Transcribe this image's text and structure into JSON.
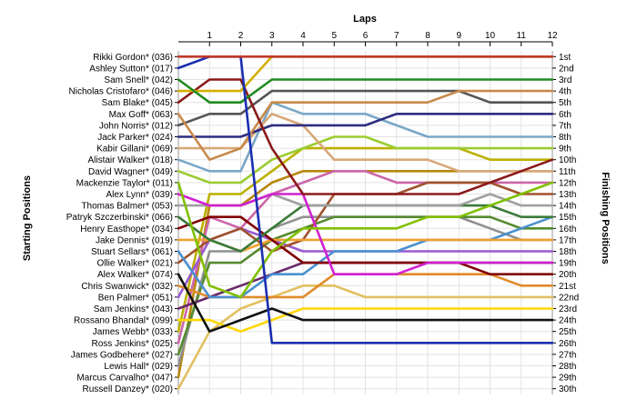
{
  "chart_data": {
    "type": "line",
    "title": "",
    "xlabel": "Laps",
    "ylabel_left": "Starting Positions",
    "ylabel_right": "Finishing Positions",
    "x": [
      0,
      1,
      2,
      3,
      4,
      5,
      6,
      7,
      8,
      9,
      10,
      11,
      12
    ],
    "x_tick_labels": [
      "1",
      "2",
      "3",
      "4",
      "5",
      "6",
      "7",
      "8",
      "9",
      "10",
      "11",
      "12"
    ],
    "grid": true,
    "drivers": [
      "Rikki Gordon* (036)",
      "Ashley Sutton* (017)",
      "Sam Snell* (042)",
      "Nicholas Cristofaro* (046)",
      "Sam Blake* (045)",
      "Max Goff* (063)",
      "John Norris* (012)",
      "Jack Parker* (024)",
      "Kabir Gillani* (069)",
      "Alistair Walker* (018)",
      "David Wagner* (049)",
      "Mackenzie Taylor* (011)",
      "Alex Lynn* (039)",
      "Thomas Balmer* (053)",
      "Patryk Szczerbinski* (066)",
      "Henry Easthope* (034)",
      "Jake Dennis* (019)",
      "Stuart Sellars* (061)",
      "Ollie Walker* (021)",
      "Alex Walker* (074)",
      "Chris Swanwick* (032)",
      "Ben Palmer* (051)",
      "Sam Jenkins* (043)",
      "Rossano Bhandal* (099)",
      "James Webb* (033)",
      "Ross Jenkins* (025)",
      "James Godbehere* (027)",
      "Lewis Hall* (029)",
      "Marcus Carvalho* (047)",
      "Russell Danzey* (020)"
    ],
    "finishing_positions": [
      "1st",
      "2nd",
      "3rd",
      "4th",
      "5th",
      "6th",
      "7th",
      "8th",
      "9th",
      "10th",
      "11th",
      "12th",
      "13th",
      "14th",
      "15th",
      "16th",
      "17th",
      "18th",
      "19th",
      "20th",
      "21st",
      "22nd",
      "23rd",
      "24th",
      "25th",
      "26th",
      "27th",
      "28th",
      "29th",
      "30th"
    ],
    "series": [
      {
        "color": "#c0392b",
        "values": [
          1,
          1,
          1,
          1,
          1,
          1,
          1,
          1,
          1,
          1,
          1,
          1,
          1
        ]
      },
      {
        "color": "#1a2fb0",
        "values": [
          2,
          1,
          1,
          26,
          26,
          26,
          26,
          26,
          26,
          26,
          26,
          26,
          26
        ]
      },
      {
        "color": "#228b22",
        "values": [
          3,
          5,
          5,
          3,
          3,
          3,
          3,
          3,
          3,
          3,
          3,
          3,
          3
        ]
      },
      {
        "color": "#d4b000",
        "values": [
          4,
          4,
          4,
          1,
          1,
          1,
          1,
          1,
          1,
          1,
          1,
          1,
          1
        ]
      },
      {
        "color": "#8b1a1a",
        "values": [
          5,
          3,
          3,
          9,
          13,
          13,
          13,
          13,
          13,
          13,
          12,
          11,
          10
        ]
      },
      {
        "color": "#c78a4a",
        "values": [
          6,
          10,
          9,
          5,
          5,
          5,
          5,
          5,
          5,
          4,
          4,
          4,
          4
        ]
      },
      {
        "color": "#555555",
        "values": [
          7,
          6,
          6,
          4,
          4,
          4,
          4,
          4,
          4,
          4,
          5,
          5,
          5
        ]
      },
      {
        "color": "#2d2d80",
        "values": [
          8,
          8,
          8,
          7,
          7,
          7,
          7,
          6,
          6,
          6,
          6,
          6,
          6
        ]
      },
      {
        "color": "#d8a878",
        "values": [
          9,
          9,
          9,
          6,
          7,
          10,
          10,
          10,
          10,
          11,
          11,
          11,
          11
        ]
      },
      {
        "color": "#7aa7c7",
        "values": [
          10,
          11,
          11,
          5,
          6,
          6,
          6,
          7,
          8,
          8,
          8,
          8,
          8
        ]
      },
      {
        "color": "#9acd32",
        "values": [
          11,
          12,
          12,
          10,
          9,
          8,
          8,
          9,
          9,
          9,
          9,
          9,
          9
        ]
      },
      {
        "color": "#80c000",
        "values": [
          12,
          21,
          22,
          18,
          16,
          16,
          16,
          16,
          15,
          15,
          14,
          13,
          12
        ]
      },
      {
        "color": "#d020d0",
        "values": [
          13,
          14,
          14,
          13,
          13,
          20,
          20,
          20,
          19,
          19,
          19,
          19,
          19
        ]
      },
      {
        "color": "#a0a0a0",
        "values": [
          14,
          14,
          14,
          13,
          14,
          14,
          14,
          14,
          14,
          14,
          13,
          14,
          14
        ]
      },
      {
        "color": "#3a7a3a",
        "values": [
          15,
          17,
          18,
          16,
          14,
          14,
          14,
          14,
          14,
          14,
          14,
          15,
          15
        ]
      },
      {
        "color": "#800000",
        "values": [
          16,
          15,
          15,
          17,
          19,
          19,
          19,
          19,
          19,
          19,
          20,
          20,
          20
        ]
      },
      {
        "color": "#f0a030",
        "values": [
          17,
          17,
          18,
          17,
          17,
          17,
          17,
          17,
          17,
          17,
          17,
          17,
          17
        ]
      },
      {
        "color": "#4a90d0",
        "values": [
          18,
          22,
          22,
          20,
          20,
          18,
          18,
          18,
          17,
          17,
          17,
          16,
          15
        ]
      },
      {
        "color": "#a0522d",
        "values": [
          19,
          17,
          16,
          18,
          17,
          13,
          13,
          13,
          12,
          12,
          12,
          13,
          13
        ]
      },
      {
        "color": "#111111",
        "values": [
          20,
          25,
          24,
          23,
          24,
          24,
          24,
          24,
          24,
          24,
          24,
          24,
          24
        ]
      },
      {
        "color": "#e08a2a",
        "values": [
          21,
          22,
          22,
          22,
          22,
          20,
          20,
          20,
          20,
          20,
          20,
          21,
          21
        ]
      },
      {
        "color": "#9b59d0",
        "values": [
          22,
          17,
          16,
          17,
          18,
          18,
          18,
          18,
          18,
          18,
          18,
          18,
          18
        ]
      },
      {
        "color": "#6a2a6a",
        "values": [
          23,
          22,
          21,
          20,
          19,
          19,
          19,
          19,
          19,
          19,
          19,
          19,
          19
        ]
      },
      {
        "color": "#ffd700",
        "values": [
          24,
          24,
          25,
          24,
          23,
          23,
          23,
          23,
          23,
          23,
          23,
          23,
          23
        ]
      },
      {
        "color": "#bbb000",
        "values": [
          25,
          13,
          13,
          11,
          9,
          9,
          9,
          9,
          9,
          9,
          10,
          10,
          10
        ]
      },
      {
        "color": "#cc66aa",
        "values": [
          26,
          15,
          16,
          13,
          12,
          11,
          11,
          12,
          12,
          12,
          12,
          12,
          12
        ]
      },
      {
        "color": "#558b2f",
        "values": [
          27,
          19,
          19,
          17,
          16,
          15,
          15,
          15,
          15,
          15,
          15,
          16,
          16
        ]
      },
      {
        "color": "#909090",
        "values": [
          28,
          18,
          18,
          16,
          15,
          15,
          15,
          15,
          15,
          15,
          16,
          17,
          17
        ]
      },
      {
        "color": "#b8860b",
        "values": [
          29,
          14,
          14,
          12,
          11,
          11,
          11,
          11,
          11,
          11,
          11,
          11,
          11
        ]
      },
      {
        "color": "#e2c060",
        "values": [
          30,
          25,
          23,
          22,
          21,
          21,
          22,
          22,
          22,
          22,
          22,
          22,
          22
        ]
      }
    ]
  }
}
